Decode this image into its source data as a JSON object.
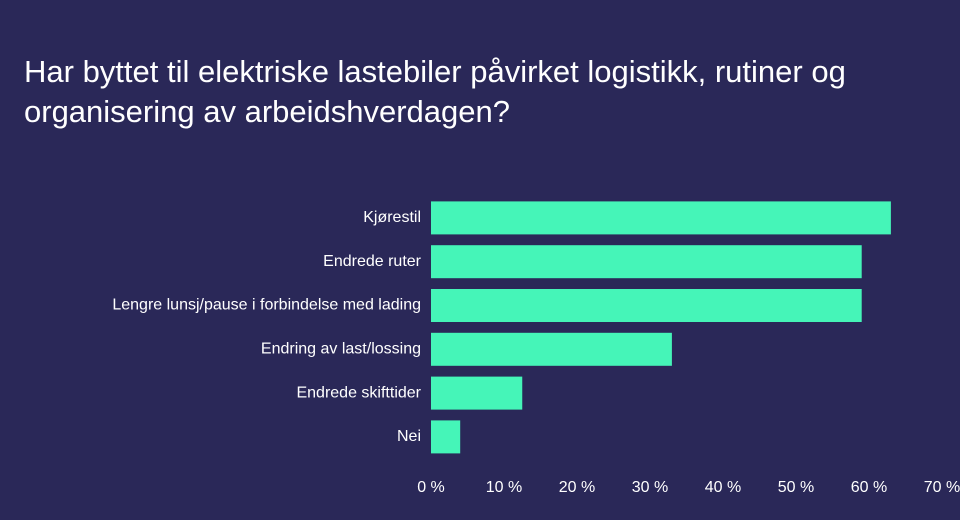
{
  "chart_data": {
    "type": "barh",
    "title": "Har byttet til elektriske lastebiler påvirket logistikk, rutiner og organisering av arbeidshverdagen?",
    "categories": [
      "Kjørestil",
      "Endrede ruter",
      "Lengre lunsj/pause i forbindelse med lading",
      "Endring av last/lossing",
      "Endrede skifttider",
      "Nei"
    ],
    "values": [
      63,
      59,
      59,
      33,
      12.5,
      4
    ],
    "color": "#45f5b8",
    "xlim": [
      0,
      70
    ],
    "xticks": [
      {
        "value": 0,
        "label": "0 %"
      },
      {
        "value": 10,
        "label": "10 %"
      },
      {
        "value": 20,
        "label": "20 %"
      },
      {
        "value": 30,
        "label": "30 %"
      },
      {
        "value": 40,
        "label": "40 %"
      },
      {
        "value": 50,
        "label": "50 %"
      },
      {
        "value": 60,
        "label": "60 %"
      },
      {
        "value": 70,
        "label": "70 %"
      }
    ],
    "grid": false
  }
}
